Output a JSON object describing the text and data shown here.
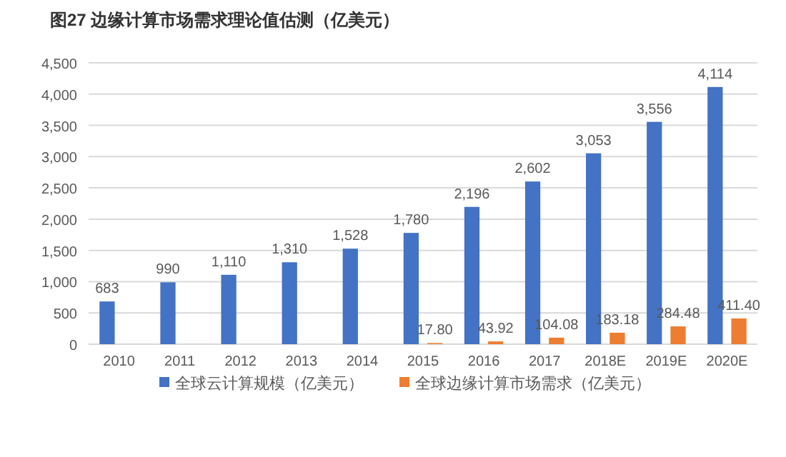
{
  "chart_data": {
    "type": "bar",
    "title": "图27 边缘计算市场需求理论值估测（亿美元）",
    "categories": [
      "2010",
      "2011",
      "2012",
      "2013",
      "2014",
      "2015",
      "2016",
      "2017",
      "2018E",
      "2019E",
      "2020E"
    ],
    "series": [
      {
        "name": "全球云计算规模（亿美元）",
        "color": "#4472c4",
        "values": [
          683,
          990,
          1110,
          1310,
          1528,
          1780,
          2196,
          2602,
          3053,
          3556,
          4114
        ],
        "value_labels": [
          "683",
          "990",
          "1,110",
          "1,310",
          "1,528",
          "1,780",
          "2,196",
          "2,602",
          "3,053",
          "3,556",
          "4,114"
        ]
      },
      {
        "name": "全球边缘计算市场需求（亿美元）",
        "color": "#ed7d31",
        "values": [
          null,
          null,
          null,
          null,
          null,
          17.8,
          43.92,
          104.08,
          183.18,
          284.48,
          411.4
        ],
        "value_labels": [
          null,
          null,
          null,
          null,
          null,
          "17.80",
          "43.92",
          "104.08",
          "183.18",
          "284.48",
          "411.40"
        ]
      }
    ],
    "ylim": [
      0,
      4500
    ],
    "yticks": [
      0,
      {
        "value": 500,
        "label": "500"
      },
      {
        "value": 1000,
        "label": "1,000"
      },
      {
        "value": 1500,
        "label": "1,500"
      },
      {
        "value": 2000,
        "label": "2,000"
      },
      {
        "value": 2500,
        "label": "2,500"
      },
      {
        "value": 3000,
        "label": "3,000"
      },
      {
        "value": 3500,
        "label": "3,500"
      },
      {
        "value": 4000,
        "label": "4,000"
      },
      {
        "value": 4500,
        "label": "4,500"
      }
    ],
    "grid": "y",
    "legend": "bottom"
  }
}
